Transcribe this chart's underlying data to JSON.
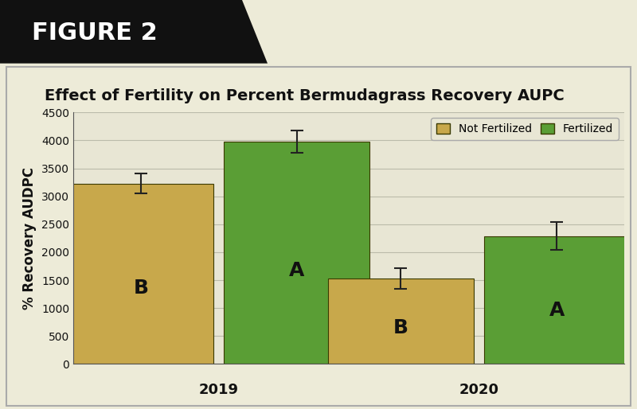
{
  "title": "Effect of Fertility on Percent Bermudagrass Recovery AUPC",
  "figure_label": "FIGURE 2",
  "ylabel": "% Recovery AUDPC",
  "years": [
    "2019",
    "2020"
  ],
  "bar_values": [
    [
      3230,
      3980
    ],
    [
      1530,
      2290
    ]
  ],
  "bar_errors": [
    [
      175,
      200
    ],
    [
      185,
      250
    ]
  ],
  "bar_color_nf": "#C8A84B",
  "bar_color_f": "#5A9E35",
  "bar_edge_color": "#3A3A00",
  "legend_labels": [
    "Not Fertilized",
    "Fertilized"
  ],
  "letters": [
    [
      "B",
      "A"
    ],
    [
      "B",
      "A"
    ]
  ],
  "ylim": [
    0,
    4500
  ],
  "yticks": [
    0,
    500,
    1000,
    1500,
    2000,
    2500,
    3000,
    3500,
    4000,
    4500
  ],
  "plot_bg": "#E8E6D4",
  "outer_bg": "#EDEBD8",
  "header_bg": "#111111",
  "header_text_color": "#FFFFFF",
  "title_color": "#111111",
  "border_color": "#AAAAAA",
  "bar_width": 0.28,
  "letter_fontsize": 18,
  "tick_fontsize": 10,
  "ylabel_fontsize": 12,
  "title_fontsize": 14,
  "legend_fontsize": 10,
  "header_fontsize": 22,
  "year_fontsize": 13
}
